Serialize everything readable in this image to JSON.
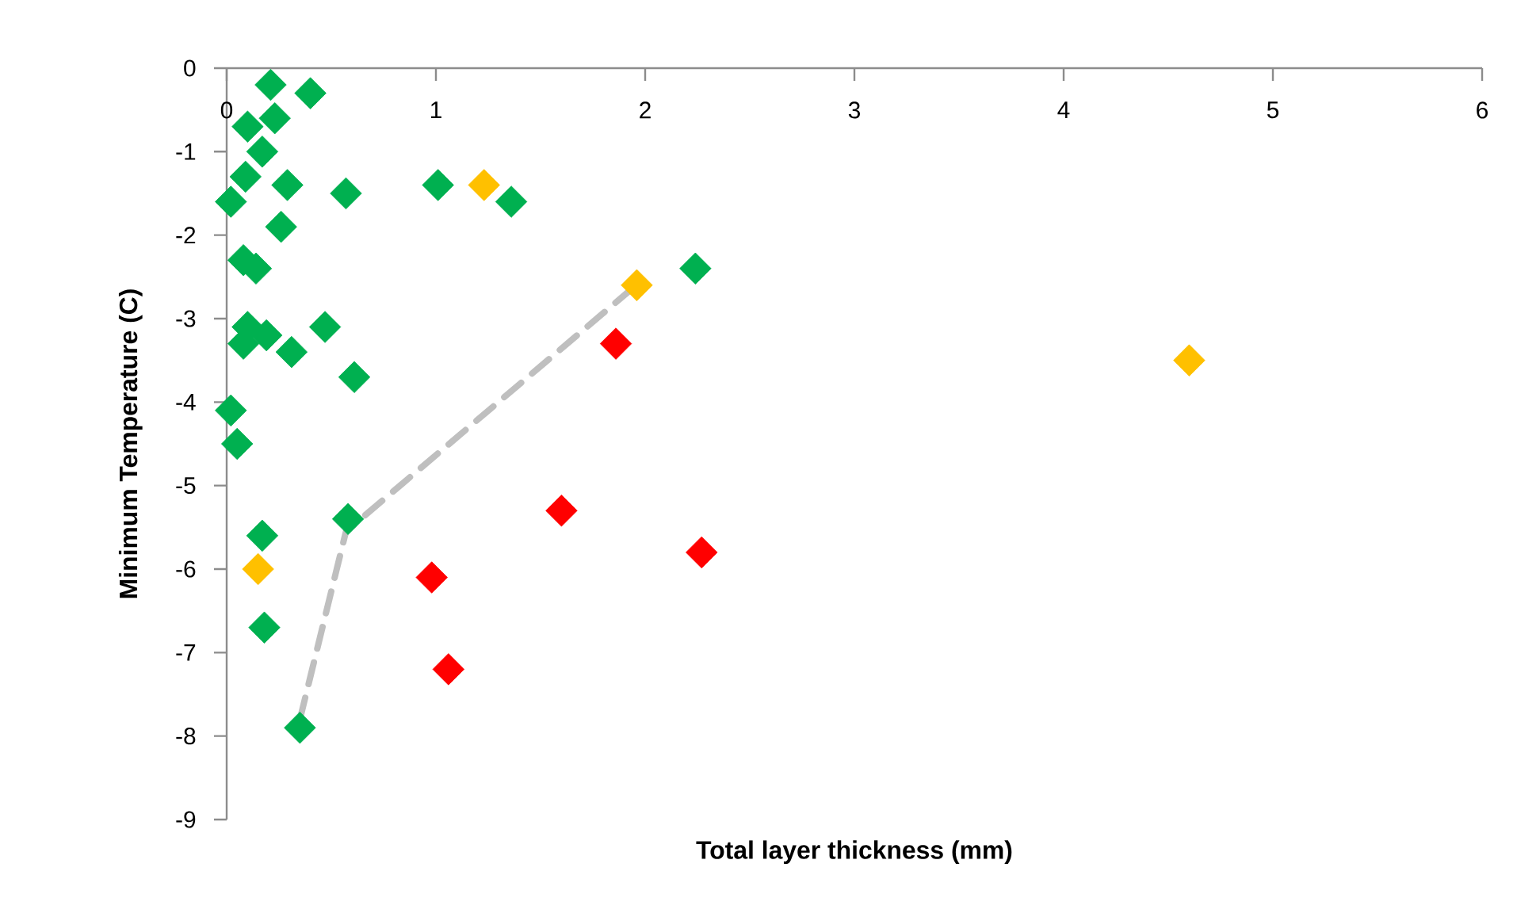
{
  "chart_data": {
    "type": "scatter",
    "xlabel": "Total layer thickness (mm)",
    "ylabel": "Minimum Temperature (C)",
    "xlim": [
      0,
      6
    ],
    "ylim": [
      -9,
      0
    ],
    "xticks": [
      0,
      1,
      2,
      3,
      4,
      5,
      6
    ],
    "yticks": [
      -9,
      -8,
      -7,
      -6,
      -5,
      -4,
      -3,
      -2,
      -1,
      0
    ],
    "marker": "diamond",
    "series": [
      {
        "type": "scatter",
        "color": "#00b050",
        "x": [
          0.21,
          0.4,
          0.23,
          0.1,
          0.17,
          0.09,
          0.29,
          0.57,
          1.01,
          1.36,
          0.02,
          0.26,
          0.08,
          0.14,
          0.1,
          0.47,
          0.19,
          0.08,
          0.31,
          0.61,
          0.02,
          0.05,
          0.17,
          0.18,
          0.35,
          0.58,
          2.24
        ],
        "values": [
          -0.2,
          -0.3,
          -0.6,
          -0.7,
          -1.0,
          -1.3,
          -1.4,
          -1.5,
          -1.4,
          -1.6,
          -1.6,
          -1.9,
          -2.3,
          -2.4,
          -3.1,
          -3.1,
          -3.2,
          -3.3,
          -3.4,
          -3.7,
          -4.1,
          -4.5,
          -5.6,
          -6.7,
          -7.9,
          -5.4,
          -2.4
        ]
      },
      {
        "type": "scatter",
        "color": "#ffc000",
        "x": [
          0.15,
          1.23,
          1.96,
          4.6
        ],
        "values": [
          -6.0,
          -1.4,
          -2.6,
          -3.5
        ]
      },
      {
        "type": "scatter",
        "color": "#ff0000",
        "x": [
          0.98,
          1.06,
          1.6,
          1.86,
          2.27
        ],
        "values": [
          -6.1,
          -7.2,
          -5.3,
          -3.3,
          -5.8
        ]
      },
      {
        "type": "line",
        "color": "#bfbfbf",
        "line_style": "dashed",
        "marker": "none",
        "x": [
          0.35,
          0.57,
          1.98
        ],
        "values": [
          -7.8,
          -5.55,
          -2.55
        ]
      }
    ]
  }
}
